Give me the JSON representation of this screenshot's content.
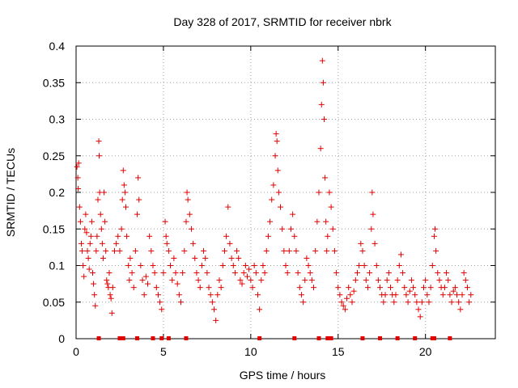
{
  "chart_data": {
    "type": "scatter",
    "title": "Day 328 of 2017, SRMTID for receiver nbrk",
    "xlabel": "GPS time / hours",
    "ylabel": "SRMTID / TECUs",
    "xlim": [
      0,
      24
    ],
    "ylim": [
      0,
      0.4
    ],
    "x_ticks": [
      0,
      5,
      10,
      15,
      20
    ],
    "y_ticks": [
      0,
      0.05,
      0.1,
      0.15,
      0.2,
      0.25,
      0.3,
      0.35,
      0.4
    ],
    "x_tick_labels": [
      "0",
      "5",
      "10",
      "15",
      "20"
    ],
    "y_tick_labels": [
      "0",
      "0.05",
      "0.1",
      "0.15",
      "0.2",
      "0.25",
      "0.3",
      "0.35",
      "0.4"
    ],
    "grid": true,
    "marker": "+",
    "color": "#e00000",
    "zero_line_markers_x": [
      1.3,
      2.5,
      2.6,
      2.7,
      3.5,
      4.4,
      4.9,
      5.3,
      6.3,
      10.5,
      12.5,
      13.9,
      14.4,
      14.5,
      14.6,
      16.4,
      17.4,
      18.4,
      19.4,
      20.4,
      20.5,
      21.4
    ],
    "series": [
      {
        "name": "SRMTID",
        "points": [
          [
            0.05,
            0.235
          ],
          [
            0.1,
            0.22
          ],
          [
            0.12,
            0.205
          ],
          [
            0.15,
            0.24
          ],
          [
            0.2,
            0.18
          ],
          [
            0.25,
            0.16
          ],
          [
            0.3,
            0.13
          ],
          [
            0.35,
            0.12
          ],
          [
            0.4,
            0.1
          ],
          [
            0.45,
            0.085
          ],
          [
            0.5,
            0.15
          ],
          [
            0.55,
            0.17
          ],
          [
            0.6,
            0.145
          ],
          [
            0.65,
            0.12
          ],
          [
            0.7,
            0.11
          ],
          [
            0.75,
            0.095
          ],
          [
            0.8,
            0.13
          ],
          [
            0.85,
            0.14
          ],
          [
            0.9,
            0.16
          ],
          [
            0.95,
            0.09
          ],
          [
            1.0,
            0.075
          ],
          [
            1.05,
            0.06
          ],
          [
            1.1,
            0.045
          ],
          [
            1.15,
            0.12
          ],
          [
            1.2,
            0.14
          ],
          [
            1.25,
            0.19
          ],
          [
            1.3,
            0.27
          ],
          [
            1.32,
            0.25
          ],
          [
            1.35,
            0.2
          ],
          [
            1.4,
            0.17
          ],
          [
            1.45,
            0.15
          ],
          [
            1.5,
            0.13
          ],
          [
            1.55,
            0.11
          ],
          [
            1.6,
            0.2
          ],
          [
            1.65,
            0.16
          ],
          [
            1.7,
            0.12
          ],
          [
            1.75,
            0.08
          ],
          [
            1.8,
            0.075
          ],
          [
            1.85,
            0.07
          ],
          [
            1.9,
            0.09
          ],
          [
            1.95,
            0.06
          ],
          [
            2.0,
            0.055
          ],
          [
            2.05,
            0.035
          ],
          [
            2.1,
            0.07
          ],
          [
            2.2,
            0.12
          ],
          [
            2.3,
            0.13
          ],
          [
            2.4,
            0.14
          ],
          [
            2.5,
            0.12
          ],
          [
            2.6,
            0.15
          ],
          [
            2.65,
            0.19
          ],
          [
            2.7,
            0.23
          ],
          [
            2.75,
            0.21
          ],
          [
            2.8,
            0.2
          ],
          [
            2.85,
            0.18
          ],
          [
            2.9,
            0.14
          ],
          [
            3.0,
            0.1
          ],
          [
            3.05,
            0.08
          ],
          [
            3.1,
            0.11
          ],
          [
            3.2,
            0.09
          ],
          [
            3.3,
            0.07
          ],
          [
            3.4,
            0.12
          ],
          [
            3.5,
            0.17
          ],
          [
            3.55,
            0.22
          ],
          [
            3.6,
            0.19
          ],
          [
            3.7,
            0.1
          ],
          [
            3.8,
            0.08
          ],
          [
            3.9,
            0.06
          ],
          [
            4.0,
            0.085
          ],
          [
            4.1,
            0.075
          ],
          [
            4.2,
            0.14
          ],
          [
            4.3,
            0.12
          ],
          [
            4.4,
            0.1
          ],
          [
            4.5,
            0.09
          ],
          [
            4.6,
            0.07
          ],
          [
            4.7,
            0.06
          ],
          [
            4.8,
            0.05
          ],
          [
            4.9,
            0.04
          ],
          [
            5.0,
            0.09
          ],
          [
            5.1,
            0.16
          ],
          [
            5.15,
            0.14
          ],
          [
            5.2,
            0.13
          ],
          [
            5.3,
            0.12
          ],
          [
            5.4,
            0.1
          ],
          [
            5.5,
            0.08
          ],
          [
            5.6,
            0.11
          ],
          [
            5.7,
            0.09
          ],
          [
            5.8,
            0.075
          ],
          [
            5.9,
            0.06
          ],
          [
            6.0,
            0.05
          ],
          [
            6.1,
            0.09
          ],
          [
            6.2,
            0.12
          ],
          [
            6.3,
            0.16
          ],
          [
            6.35,
            0.2
          ],
          [
            6.4,
            0.19
          ],
          [
            6.5,
            0.17
          ],
          [
            6.6,
            0.15
          ],
          [
            6.7,
            0.13
          ],
          [
            6.8,
            0.11
          ],
          [
            6.9,
            0.09
          ],
          [
            7.0,
            0.08
          ],
          [
            7.1,
            0.07
          ],
          [
            7.2,
            0.1
          ],
          [
            7.3,
            0.12
          ],
          [
            7.4,
            0.11
          ],
          [
            7.5,
            0.09
          ],
          [
            7.6,
            0.07
          ],
          [
            7.7,
            0.06
          ],
          [
            7.8,
            0.05
          ],
          [
            7.9,
            0.04
          ],
          [
            8.0,
            0.025
          ],
          [
            8.1,
            0.06
          ],
          [
            8.2,
            0.08
          ],
          [
            8.3,
            0.07
          ],
          [
            8.4,
            0.1
          ],
          [
            8.5,
            0.12
          ],
          [
            8.6,
            0.14
          ],
          [
            8.7,
            0.18
          ],
          [
            8.8,
            0.13
          ],
          [
            8.9,
            0.11
          ],
          [
            9.0,
            0.1
          ],
          [
            9.1,
            0.09
          ],
          [
            9.2,
            0.12
          ],
          [
            9.3,
            0.11
          ],
          [
            9.4,
            0.08
          ],
          [
            9.5,
            0.075
          ],
          [
            9.6,
            0.09
          ],
          [
            9.7,
            0.1
          ],
          [
            9.8,
            0.085
          ],
          [
            9.9,
            0.095
          ],
          [
            10.0,
            0.08
          ],
          [
            10.1,
            0.07
          ],
          [
            10.2,
            0.1
          ],
          [
            10.3,
            0.09
          ],
          [
            10.4,
            0.06
          ],
          [
            10.5,
            0.04
          ],
          [
            10.6,
            0.08
          ],
          [
            10.7,
            0.1
          ],
          [
            10.8,
            0.09
          ],
          [
            10.9,
            0.12
          ],
          [
            11.0,
            0.14
          ],
          [
            11.1,
            0.16
          ],
          [
            11.2,
            0.19
          ],
          [
            11.3,
            0.21
          ],
          [
            11.4,
            0.25
          ],
          [
            11.45,
            0.28
          ],
          [
            11.5,
            0.27
          ],
          [
            11.55,
            0.23
          ],
          [
            11.6,
            0.2
          ],
          [
            11.7,
            0.18
          ],
          [
            11.8,
            0.15
          ],
          [
            11.9,
            0.12
          ],
          [
            12.0,
            0.1
          ],
          [
            12.1,
            0.09
          ],
          [
            12.2,
            0.12
          ],
          [
            12.3,
            0.15
          ],
          [
            12.4,
            0.17
          ],
          [
            12.5,
            0.14
          ],
          [
            12.6,
            0.12
          ],
          [
            12.7,
            0.09
          ],
          [
            12.8,
            0.07
          ],
          [
            12.9,
            0.06
          ],
          [
            13.0,
            0.05
          ],
          [
            13.1,
            0.08
          ],
          [
            13.2,
            0.11
          ],
          [
            13.3,
            0.1
          ],
          [
            13.4,
            0.09
          ],
          [
            13.5,
            0.08
          ],
          [
            13.6,
            0.07
          ],
          [
            13.7,
            0.12
          ],
          [
            13.8,
            0.16
          ],
          [
            13.9,
            0.2
          ],
          [
            14.0,
            0.26
          ],
          [
            14.05,
            0.32
          ],
          [
            14.1,
            0.38
          ],
          [
            14.15,
            0.35
          ],
          [
            14.2,
            0.3
          ],
          [
            14.25,
            0.22
          ],
          [
            14.3,
            0.16
          ],
          [
            14.35,
            0.12
          ],
          [
            14.4,
            0.14
          ],
          [
            14.5,
            0.2
          ],
          [
            14.6,
            0.18
          ],
          [
            14.7,
            0.15
          ],
          [
            14.8,
            0.12
          ],
          [
            14.9,
            0.09
          ],
          [
            15.0,
            0.07
          ],
          [
            15.1,
            0.06
          ],
          [
            15.2,
            0.05
          ],
          [
            15.3,
            0.045
          ],
          [
            15.4,
            0.04
          ],
          [
            15.5,
            0.055
          ],
          [
            15.6,
            0.07
          ],
          [
            15.7,
            0.06
          ],
          [
            15.8,
            0.05
          ],
          [
            15.9,
            0.065
          ],
          [
            16.0,
            0.08
          ],
          [
            16.1,
            0.09
          ],
          [
            16.2,
            0.1
          ],
          [
            16.3,
            0.13
          ],
          [
            16.4,
            0.12
          ],
          [
            16.5,
            0.1
          ],
          [
            16.6,
            0.08
          ],
          [
            16.7,
            0.07
          ],
          [
            16.8,
            0.09
          ],
          [
            16.9,
            0.15
          ],
          [
            16.95,
            0.2
          ],
          [
            17.0,
            0.17
          ],
          [
            17.1,
            0.13
          ],
          [
            17.2,
            0.1
          ],
          [
            17.3,
            0.08
          ],
          [
            17.4,
            0.07
          ],
          [
            17.5,
            0.06
          ],
          [
            17.6,
            0.05
          ],
          [
            17.7,
            0.06
          ],
          [
            17.8,
            0.08
          ],
          [
            17.9,
            0.09
          ],
          [
            18.0,
            0.07
          ],
          [
            18.1,
            0.06
          ],
          [
            18.2,
            0.05
          ],
          [
            18.3,
            0.06
          ],
          [
            18.4,
            0.08
          ],
          [
            18.5,
            0.1
          ],
          [
            18.6,
            0.115
          ],
          [
            18.7,
            0.09
          ],
          [
            18.8,
            0.07
          ],
          [
            18.9,
            0.06
          ],
          [
            19.0,
            0.05
          ],
          [
            19.1,
            0.065
          ],
          [
            19.2,
            0.08
          ],
          [
            19.3,
            0.07
          ],
          [
            19.4,
            0.06
          ],
          [
            19.5,
            0.05
          ],
          [
            19.6,
            0.04
          ],
          [
            19.7,
            0.03
          ],
          [
            19.8,
            0.05
          ],
          [
            19.9,
            0.07
          ],
          [
            20.0,
            0.08
          ],
          [
            20.1,
            0.06
          ],
          [
            20.2,
            0.05
          ],
          [
            20.3,
            0.07
          ],
          [
            20.4,
            0.1
          ],
          [
            20.5,
            0.14
          ],
          [
            20.55,
            0.15
          ],
          [
            20.6,
            0.12
          ],
          [
            20.7,
            0.09
          ],
          [
            20.8,
            0.08
          ],
          [
            20.9,
            0.07
          ],
          [
            21.0,
            0.06
          ],
          [
            21.1,
            0.07
          ],
          [
            21.2,
            0.09
          ],
          [
            21.3,
            0.08
          ],
          [
            21.4,
            0.06
          ],
          [
            21.5,
            0.05
          ],
          [
            21.6,
            0.065
          ],
          [
            21.7,
            0.07
          ],
          [
            21.8,
            0.06
          ],
          [
            21.9,
            0.05
          ],
          [
            22.0,
            0.04
          ],
          [
            22.1,
            0.06
          ],
          [
            22.2,
            0.09
          ],
          [
            22.3,
            0.08
          ],
          [
            22.4,
            0.07
          ],
          [
            22.5,
            0.05
          ],
          [
            22.6,
            0.06
          ]
        ]
      }
    ]
  }
}
